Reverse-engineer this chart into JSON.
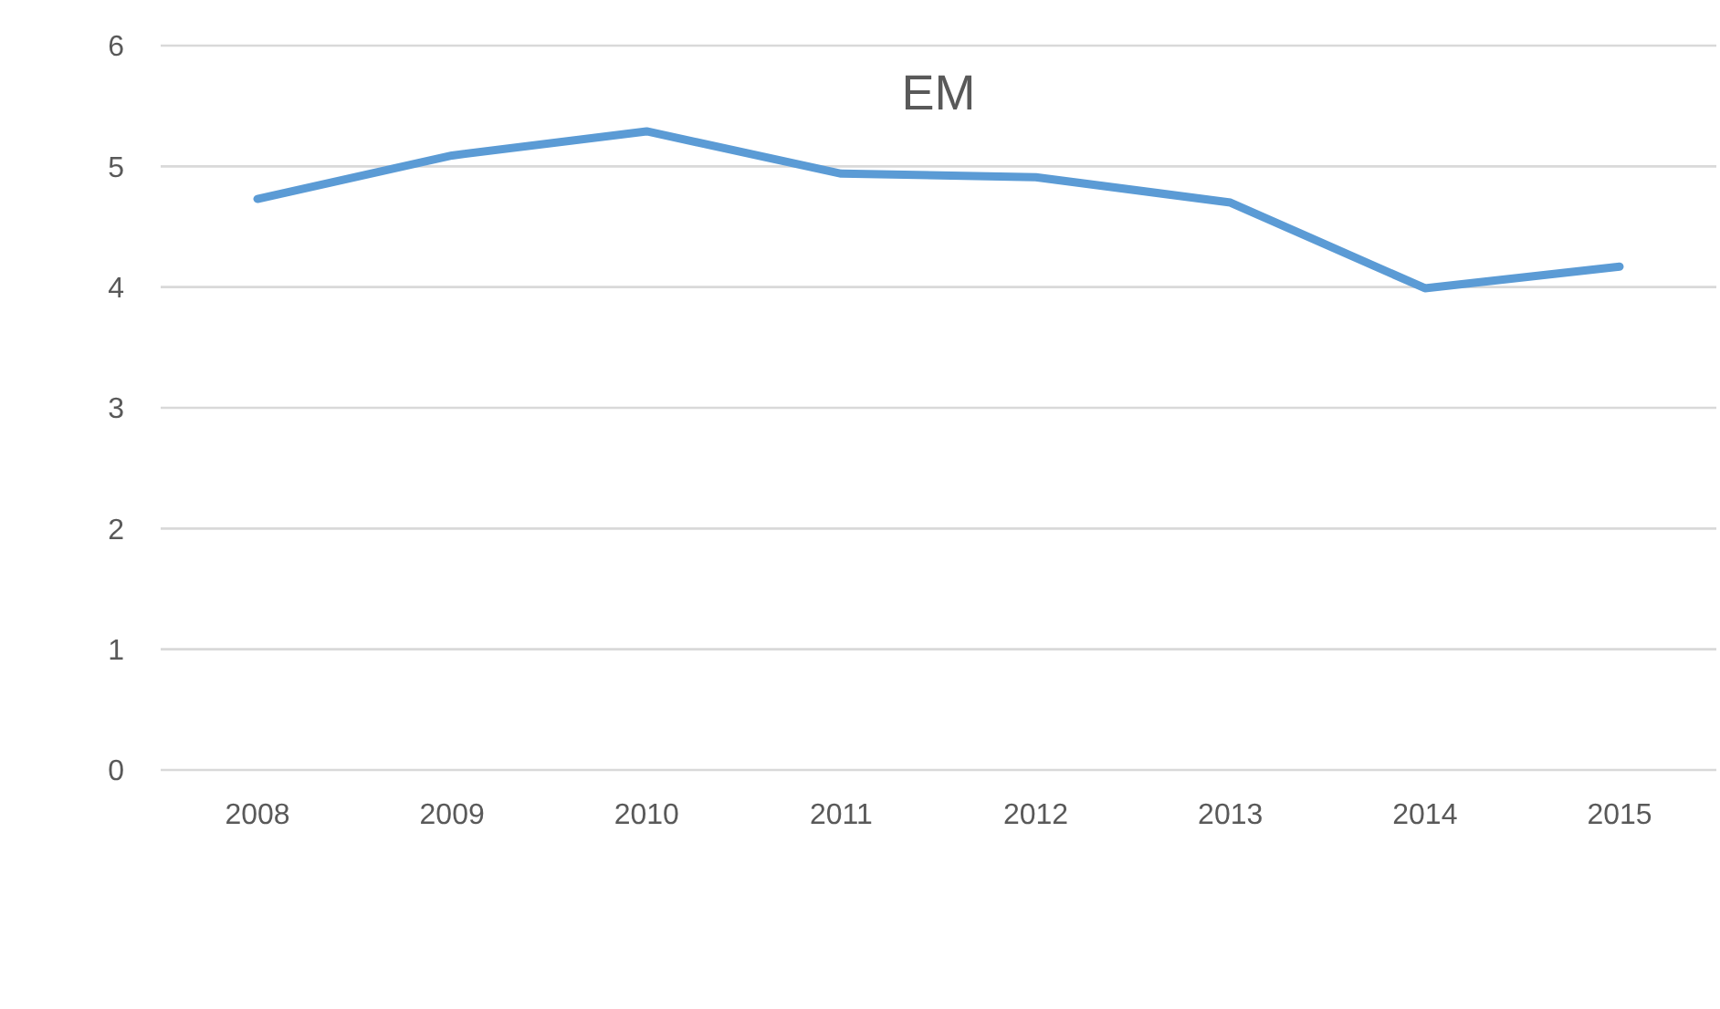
{
  "chart_data": {
    "type": "line",
    "title": "EM",
    "categories": [
      "2008",
      "2009",
      "2010",
      "2011",
      "2012",
      "2013",
      "2014",
      "2015"
    ],
    "series": [
      {
        "color": "#5b9bd5",
        "values": [
          4.73,
          5.09,
          5.29,
          4.94,
          4.91,
          4.7,
          3.99,
          4.17
        ]
      }
    ],
    "ylim": [
      0,
      6
    ],
    "yticks": [
      0,
      1,
      2,
      3,
      4,
      5,
      6
    ],
    "grid": "y",
    "legend": false,
    "marker": "none",
    "line_style": "solid"
  }
}
